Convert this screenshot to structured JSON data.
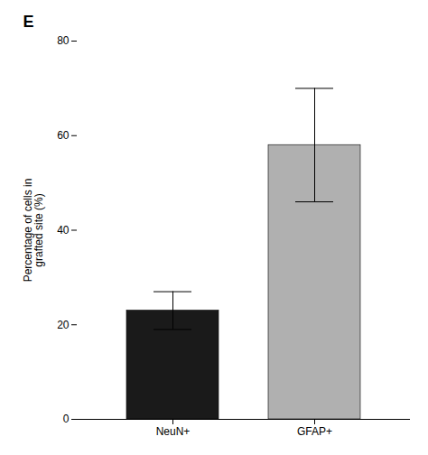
{
  "chart_data": {
    "type": "bar",
    "categories": [
      "NeuN+",
      "GFAP+"
    ],
    "values": [
      23,
      58
    ],
    "errors": [
      4,
      12
    ],
    "colors": [
      "#1a1a1a",
      "#b0b0b0"
    ],
    "ylabel": "Percentage of cells in\ngrafted site (%)",
    "ylim": [
      0,
      80
    ],
    "yticks": [
      0,
      20,
      40,
      60,
      80
    ],
    "annotation": "E"
  }
}
